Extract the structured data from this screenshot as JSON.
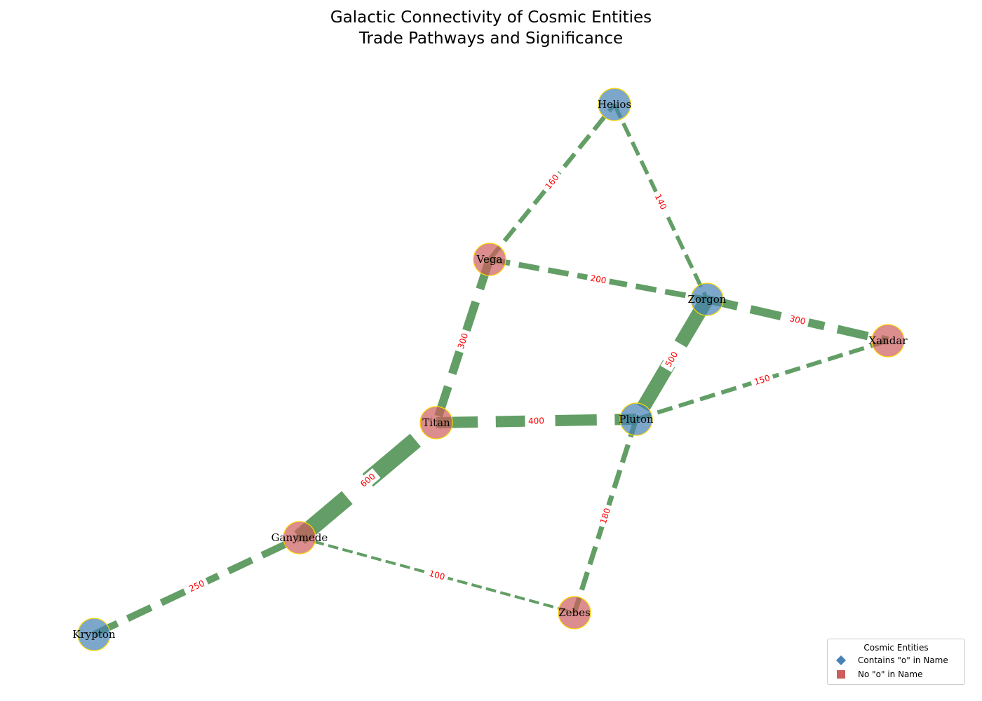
{
  "title": {
    "line1": "Galactic Connectivity of Cosmic Entities",
    "line2": "Trade Pathways and Significance"
  },
  "colors": {
    "with_o": "#4682b4",
    "without_o": "#cd5c5c",
    "node_border": "#ffd700",
    "edge": "#2e7d32",
    "edge_label": "#ff0000"
  },
  "nodes": [
    {
      "id": "Helios",
      "group": "with_o"
    },
    {
      "id": "Vega",
      "group": "without_o"
    },
    {
      "id": "Zorgon",
      "group": "with_o"
    },
    {
      "id": "Xandar",
      "group": "without_o"
    },
    {
      "id": "Titan",
      "group": "without_o"
    },
    {
      "id": "Pluton",
      "group": "with_o"
    },
    {
      "id": "Ganymede",
      "group": "without_o"
    },
    {
      "id": "Zebes",
      "group": "without_o"
    },
    {
      "id": "Krypton",
      "group": "with_o"
    }
  ],
  "edges": [
    {
      "source": "Vega",
      "target": "Helios",
      "weight": 160
    },
    {
      "source": "Helios",
      "target": "Zorgon",
      "weight": 140
    },
    {
      "source": "Vega",
      "target": "Zorgon",
      "weight": 200
    },
    {
      "source": "Zorgon",
      "target": "Xandar",
      "weight": 300
    },
    {
      "source": "Vega",
      "target": "Titan",
      "weight": 300
    },
    {
      "source": "Zorgon",
      "target": "Pluton",
      "weight": 500
    },
    {
      "source": "Pluton",
      "target": "Xandar",
      "weight": 150
    },
    {
      "source": "Titan",
      "target": "Pluton",
      "weight": 400
    },
    {
      "source": "Ganymede",
      "target": "Titan",
      "weight": 600
    },
    {
      "source": "Pluton",
      "target": "Zebes",
      "weight": 180
    },
    {
      "source": "Krypton",
      "target": "Ganymede",
      "weight": 250
    },
    {
      "source": "Ganymede",
      "target": "Zebes",
      "weight": 100
    }
  ],
  "legend": {
    "title": "Cosmic Entities",
    "items": [
      {
        "label": "Contains \"o\" in Name",
        "shape": "diamond",
        "group": "with_o"
      },
      {
        "label": "No \"o\" in Name",
        "shape": "square",
        "group": "without_o"
      }
    ]
  }
}
